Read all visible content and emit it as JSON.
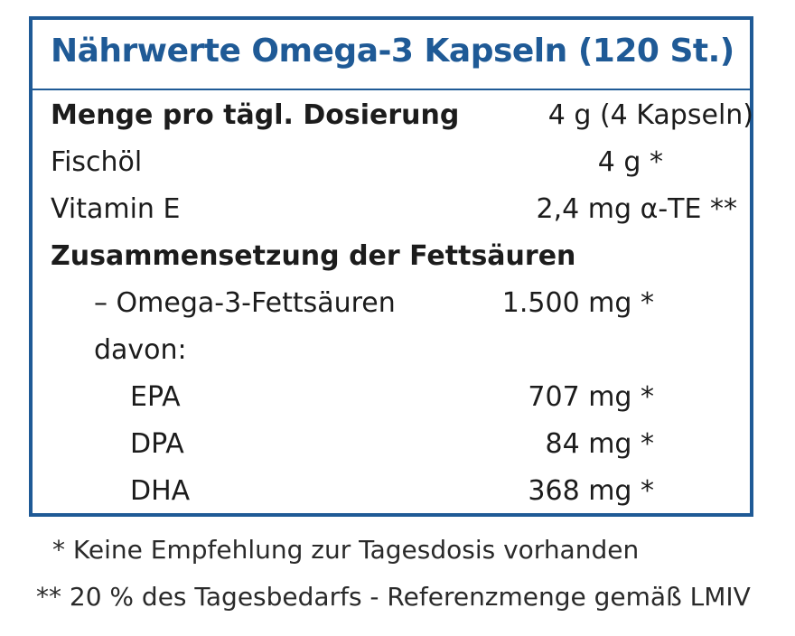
{
  "title": "Nährwerte Omega-3 Kapseln (120 St.)",
  "rows": [
    {
      "label": "Menge pro tägl. Dosierung",
      "value": "4 g (4 Kapseln)"
    },
    {
      "label": "Fischöl",
      "value": "4 g *"
    },
    {
      "label": "Vitamin E",
      "value": "2,4 mg α-TE **"
    }
  ],
  "composition": {
    "heading": "Zusammensetzung der Fettsäuren",
    "omega3": {
      "label": "– Omega-3-Fettsäuren",
      "value": "1.500 mg *"
    },
    "davon": "davon:",
    "items": [
      {
        "label": "EPA",
        "value": "707 mg *"
      },
      {
        "label": "DPA",
        "value": "84 mg *"
      },
      {
        "label": "DHA",
        "value": "368 mg *"
      }
    ]
  },
  "footnotes": [
    "* Keine Empfehlung zur Tagesdosis vorhanden",
    "** 20 % des Tagesbedarfs - Referenzmenge gemäß LMIV"
  ],
  "colors": {
    "accent": "#1f5a96",
    "text": "#1c1c1c"
  }
}
